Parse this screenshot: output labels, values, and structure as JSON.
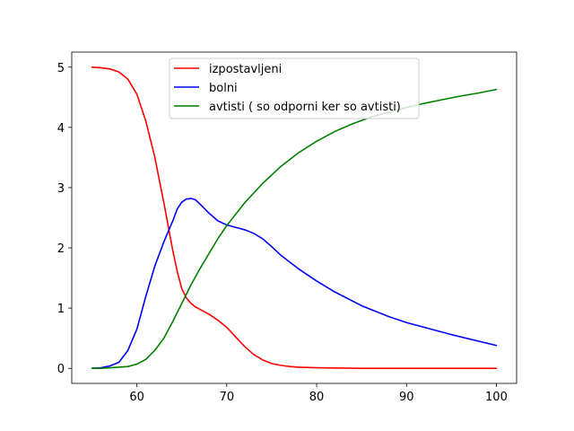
{
  "chart_data": {
    "type": "line",
    "title": "",
    "xlabel": "",
    "ylabel": "",
    "xlim": [
      52.75,
      102.25
    ],
    "ylim": [
      -0.25,
      5.25
    ],
    "xticks": [
      60,
      70,
      80,
      90,
      100
    ],
    "yticks": [
      0,
      1,
      2,
      3,
      4,
      5
    ],
    "grid": false,
    "legend_position": "upper center",
    "series": [
      {
        "name": "izpostavljeni",
        "color": "#ff0000",
        "x": [
          55,
          56,
          57,
          58,
          59,
          60,
          61,
          62,
          62.5,
          63,
          63.5,
          64,
          64.5,
          65,
          65.5,
          66,
          66.5,
          67,
          67.5,
          68,
          69,
          70,
          71,
          72,
          73,
          74,
          75,
          76,
          77,
          78,
          80,
          85,
          90,
          100
        ],
        "y": [
          5.0,
          4.99,
          4.97,
          4.92,
          4.8,
          4.55,
          4.1,
          3.5,
          3.12,
          2.75,
          2.35,
          1.95,
          1.6,
          1.32,
          1.17,
          1.08,
          1.02,
          0.98,
          0.94,
          0.9,
          0.8,
          0.68,
          0.52,
          0.36,
          0.23,
          0.14,
          0.08,
          0.05,
          0.03,
          0.02,
          0.01,
          0.0,
          0.0,
          0.0
        ]
      },
      {
        "name": "bolni",
        "color": "#0000ff",
        "x": [
          55,
          56,
          57,
          58,
          59,
          60,
          61,
          62,
          63,
          64,
          64.5,
          65,
          65.5,
          66,
          66.5,
          67,
          68,
          69,
          70,
          71,
          72,
          73,
          74,
          75,
          76,
          78,
          80,
          82,
          85,
          88,
          90,
          95,
          100
        ],
        "y": [
          0.0,
          0.01,
          0.04,
          0.1,
          0.3,
          0.65,
          1.2,
          1.7,
          2.1,
          2.45,
          2.65,
          2.76,
          2.81,
          2.82,
          2.8,
          2.73,
          2.58,
          2.45,
          2.38,
          2.34,
          2.3,
          2.24,
          2.15,
          2.02,
          1.88,
          1.65,
          1.45,
          1.27,
          1.04,
          0.86,
          0.76,
          0.56,
          0.38
        ]
      },
      {
        "name": "avtisti ( so odporni ker so avtisti)",
        "color": "#008000",
        "x": [
          55,
          56,
          57,
          58,
          59,
          60,
          61,
          62,
          63,
          64,
          65,
          66,
          67,
          68,
          69,
          70,
          72,
          74,
          76,
          78,
          80,
          82,
          84,
          86,
          88,
          90,
          92,
          94,
          96,
          98,
          100
        ],
        "y": [
          0.0,
          0.0,
          0.01,
          0.02,
          0.03,
          0.07,
          0.15,
          0.3,
          0.5,
          0.78,
          1.08,
          1.38,
          1.65,
          1.9,
          2.15,
          2.37,
          2.75,
          3.07,
          3.35,
          3.58,
          3.77,
          3.93,
          4.06,
          4.17,
          4.25,
          4.33,
          4.4,
          4.46,
          4.52,
          4.57,
          4.63
        ]
      }
    ]
  }
}
